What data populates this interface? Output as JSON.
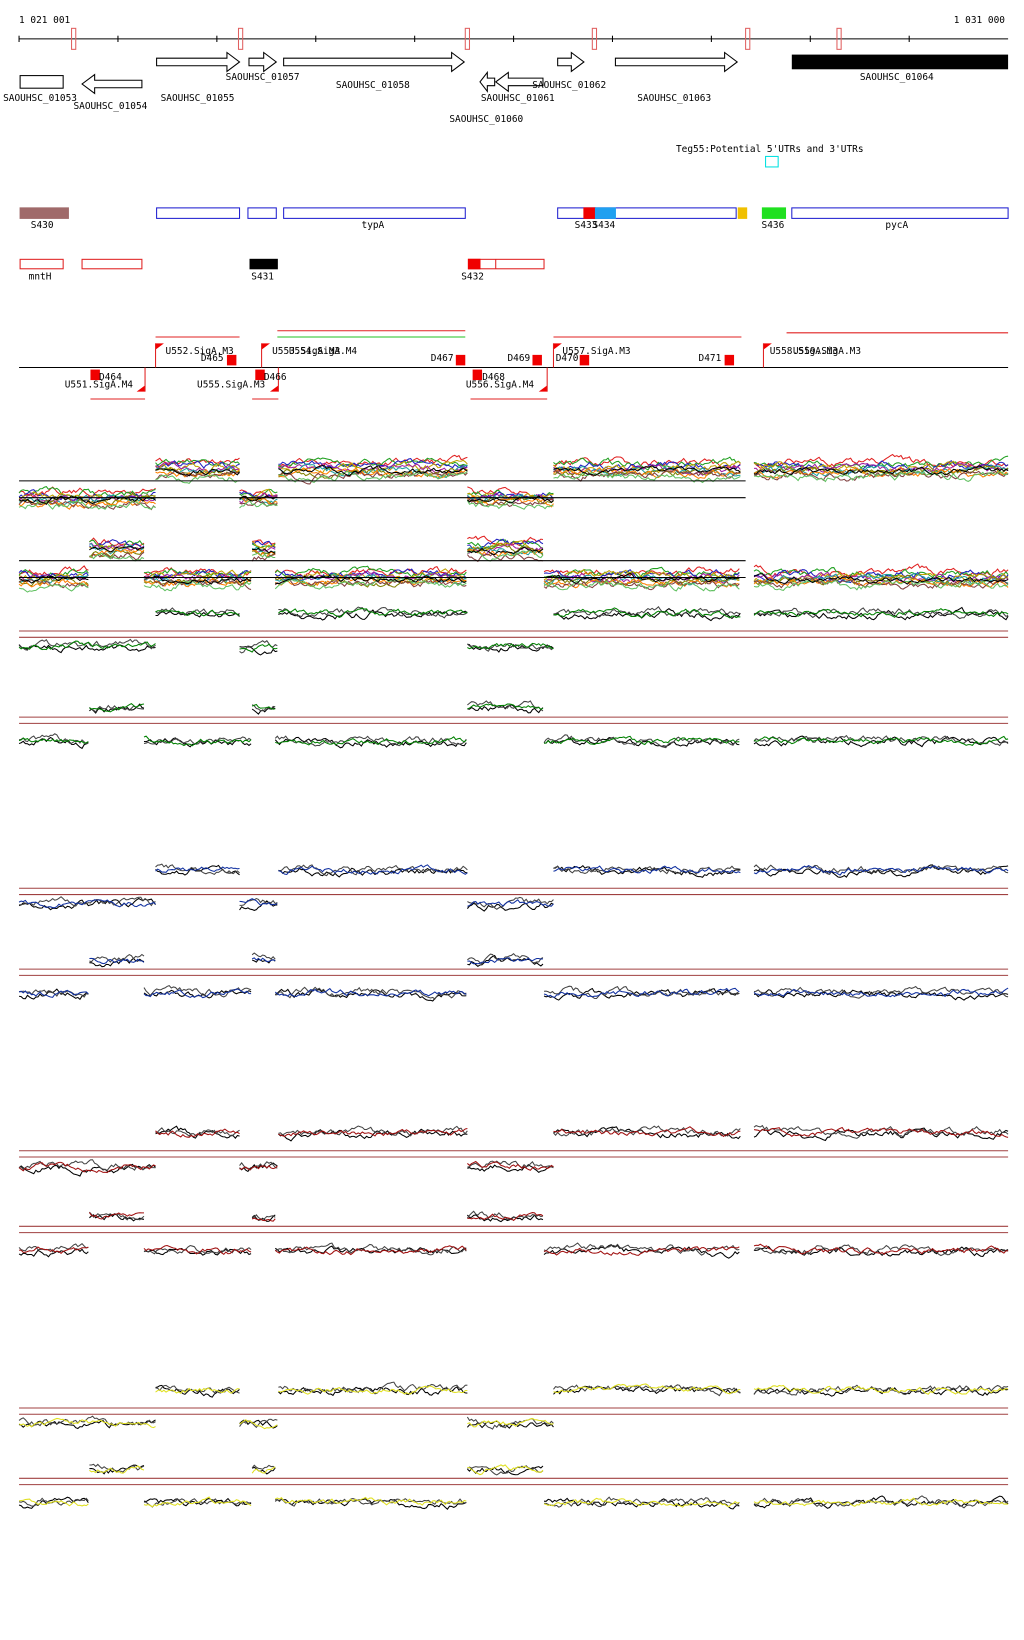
{
  "coordinates": {
    "start": "1 021 001",
    "end": "1 031 000"
  },
  "genes": [
    "SAOUHSC_01053",
    "SAOUHSC_01054",
    "SAOUHSC_01055",
    "SAOUHSC_01057",
    "SAOUHSC_01058",
    "SAOUHSC_01060",
    "SAOUHSC_01061",
    "SAOUHSC_01062",
    "SAOUHSC_01063",
    "SAOUHSC_01064"
  ],
  "track_title": "Teg55:Potential 5'UTRs and 3'UTRs",
  "features": [
    "S430",
    "typA",
    "S433",
    "S434",
    "S436",
    "pycA"
  ],
  "features_row2": [
    "mntH",
    "S431",
    "S432"
  ],
  "promoters": [
    "U552.SigA.M3",
    "U553.SigA.M3",
    "U554.SigA.M4",
    "U557.SigA.M3",
    "U558.SigA.M3",
    "U559.SigA.M3",
    "U551.SigA.M4",
    "U555.SigA.M3",
    "U556.SigA.M4"
  ],
  "terminators": [
    "D464",
    "D465",
    "D466",
    "D467",
    "D468",
    "D469",
    "D470",
    "D471"
  ]
}
